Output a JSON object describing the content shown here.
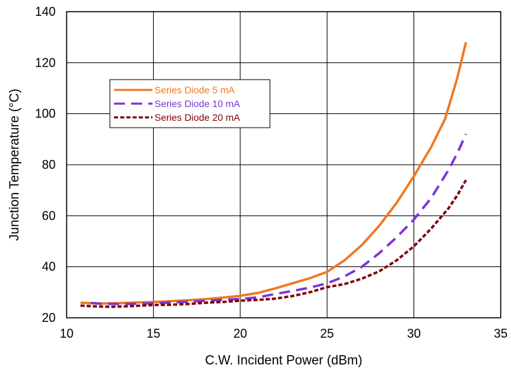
{
  "chart_data": {
    "type": "line",
    "title": "",
    "xlabel": "C.W. Incident Power (dBm)",
    "ylabel": "Junction Temperature (°C)",
    "xlim": [
      10,
      35
    ],
    "ylim": [
      20,
      140
    ],
    "xticks": [
      "10",
      "15",
      "20",
      "25",
      "30",
      "35"
    ],
    "yticks": [
      "20",
      "40",
      "60",
      "80",
      "100",
      "120",
      "140"
    ],
    "grid": true,
    "legend_position": "upper-left",
    "series": [
      {
        "name": "Series Diode 5 mA",
        "color": "#f07822",
        "dash": "solid",
        "points": [
          [
            10.8,
            25.9
          ],
          [
            12,
            25.6
          ],
          [
            13,
            25.7
          ],
          [
            14,
            26
          ],
          [
            15,
            26.2
          ],
          [
            16,
            26.5
          ],
          [
            17,
            26.9
          ],
          [
            18,
            27.3
          ],
          [
            19,
            27.9
          ],
          [
            20,
            28.6
          ],
          [
            21,
            29.7
          ],
          [
            22,
            31.5
          ],
          [
            23,
            33.5
          ],
          [
            24,
            35.5
          ],
          [
            25,
            38
          ],
          [
            26,
            42.5
          ],
          [
            27,
            48.5
          ],
          [
            28,
            56
          ],
          [
            29,
            65
          ],
          [
            30,
            75.5
          ],
          [
            31,
            87
          ],
          [
            31.8,
            98
          ],
          [
            32.5,
            114
          ],
          [
            33,
            128
          ]
        ]
      },
      {
        "name": "Series Diode 10 mA",
        "color": "#7a35d6",
        "dash": "dashed",
        "points": [
          [
            11.4,
            25.8
          ],
          [
            12,
            25.5
          ],
          [
            13,
            25.4
          ],
          [
            14,
            25.5
          ],
          [
            15,
            25.7
          ],
          [
            16,
            26
          ],
          [
            17,
            26.3
          ],
          [
            18,
            26.7
          ],
          [
            19,
            27
          ],
          [
            20,
            27.4
          ],
          [
            21,
            28
          ],
          [
            22,
            29.3
          ],
          [
            23,
            30.5
          ],
          [
            24,
            31.8
          ],
          [
            25,
            33.5
          ],
          [
            26,
            36.2
          ],
          [
            27,
            40
          ],
          [
            28,
            45.3
          ],
          [
            29,
            51.5
          ],
          [
            30,
            58.5
          ],
          [
            31,
            67
          ],
          [
            32,
            78
          ],
          [
            32.5,
            84.5
          ],
          [
            33,
            92
          ]
        ]
      },
      {
        "name": "Series Diode 20 mA",
        "color": "#800000",
        "dash": "dotted",
        "points": [
          [
            10.8,
            24.8
          ],
          [
            11.5,
            24.5
          ],
          [
            12.5,
            24.3
          ],
          [
            13.5,
            24.5
          ],
          [
            15,
            25
          ],
          [
            16,
            25.1
          ],
          [
            17,
            25.4
          ],
          [
            18,
            25.9
          ],
          [
            19,
            26.2
          ],
          [
            20,
            26.7
          ],
          [
            21,
            27
          ],
          [
            22,
            27.5
          ],
          [
            23,
            28.5
          ],
          [
            24,
            30
          ],
          [
            25,
            32
          ],
          [
            26,
            33.2
          ],
          [
            27,
            35.3
          ],
          [
            28,
            38.2
          ],
          [
            29,
            42.5
          ],
          [
            30,
            48
          ],
          [
            31,
            55
          ],
          [
            32,
            63
          ],
          [
            32.5,
            68
          ],
          [
            33,
            74
          ]
        ]
      }
    ]
  }
}
